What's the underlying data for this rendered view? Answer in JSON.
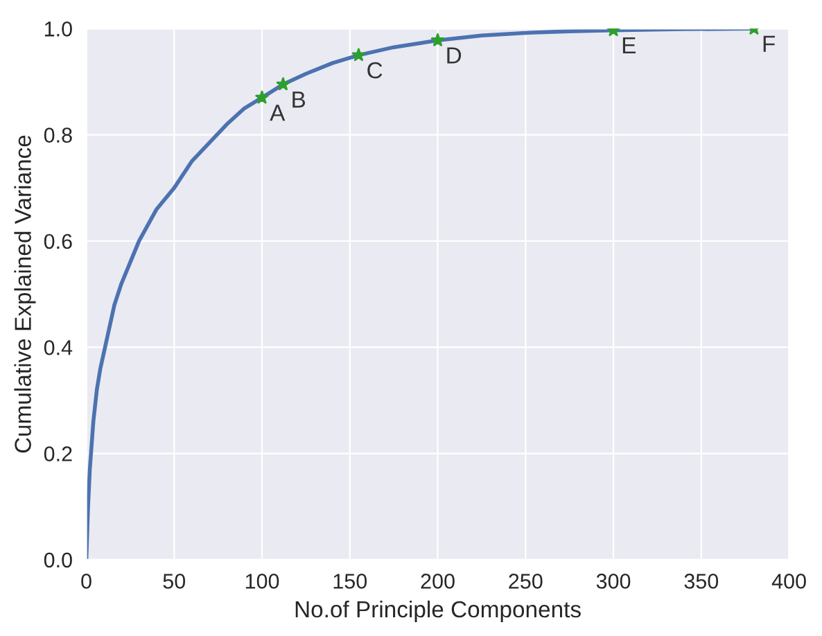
{
  "chart_data": {
    "type": "line",
    "xlabel": "No.of Principle Components",
    "ylabel": "Cumulative Explained Variance",
    "xlim": [
      0,
      400
    ],
    "ylim": [
      0,
      1.0
    ],
    "xticks": [
      0,
      50,
      100,
      150,
      200,
      250,
      300,
      350,
      400
    ],
    "yticks": [
      {
        "value": 0,
        "label": "0.0"
      },
      {
        "value": 0.2,
        "label": "0.2"
      },
      {
        "value": 0.4,
        "label": "0.4"
      },
      {
        "value": 0.6,
        "label": "0.6"
      },
      {
        "value": 0.8,
        "label": "0.8"
      },
      {
        "value": 1.0,
        "label": "1.0"
      }
    ],
    "grid": true,
    "series": [
      {
        "color": "#4c72b0",
        "marker": "none",
        "x": [
          0,
          1,
          2,
          4,
          6,
          8,
          10,
          12,
          16,
          20,
          25,
          30,
          40,
          50,
          60,
          70,
          80,
          90,
          100,
          112,
          125,
          140,
          155,
          175,
          200,
          225,
          250,
          275,
          300,
          340,
          380
        ],
        "values": [
          0,
          0.1,
          0.17,
          0.26,
          0.32,
          0.36,
          0.39,
          0.42,
          0.48,
          0.52,
          0.56,
          0.6,
          0.66,
          0.7,
          0.75,
          0.785,
          0.82,
          0.85,
          0.87,
          0.895,
          0.915,
          0.935,
          0.95,
          0.965,
          0.978,
          0.987,
          0.992,
          0.995,
          0.997,
          0.999,
          1.0
        ]
      },
      {
        "type": "scatter",
        "color": "#2ca02c",
        "marker": "star",
        "x": [
          100,
          112,
          155,
          200,
          300,
          380
        ],
        "values": [
          0.87,
          0.895,
          0.95,
          0.978,
          0.997,
          1.0
        ]
      }
    ],
    "annotations": [
      {
        "text": "A",
        "x": 100,
        "y": 0.87
      },
      {
        "text": "B",
        "x": 112,
        "y": 0.895
      },
      {
        "text": "C",
        "x": 155,
        "y": 0.95
      },
      {
        "text": "D",
        "x": 200,
        "y": 0.978
      },
      {
        "text": "E",
        "x": 300,
        "y": 0.997
      },
      {
        "text": "F",
        "x": 380,
        "y": 1.0
      }
    ]
  }
}
